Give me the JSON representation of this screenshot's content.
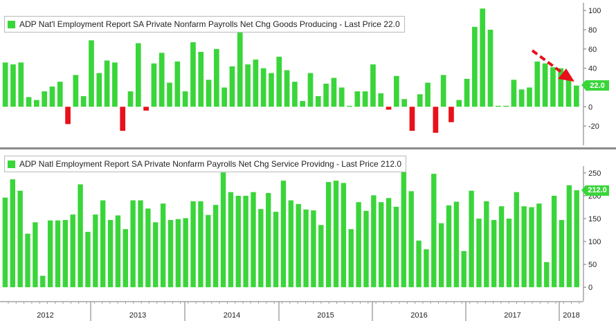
{
  "colors": {
    "positive": "#3ad53a",
    "negative": "#e8111a",
    "arrow": "#e8111a",
    "separator": "#8a8a8a"
  },
  "chart_data": [
    {
      "type": "bar",
      "title": "ADP Nat'l Employment Report SA Private Nonfarm Payrolls Net Chg Goods Producing - Last Price 22.0",
      "last_price_label": "22.0",
      "ylim": [
        -40,
        108
      ],
      "y_ticks": [
        -20,
        0,
        20,
        40,
        60,
        80,
        100
      ],
      "y_tick_labels": [
        "-20",
        "0",
        "20",
        "40",
        "60",
        "80",
        "100"
      ],
      "values": [
        46,
        44,
        46,
        10,
        7,
        16,
        21,
        26,
        -18,
        33,
        11,
        69,
        35,
        48,
        46,
        -25,
        16,
        66,
        -4,
        45,
        56,
        25,
        47,
        16,
        67,
        57,
        28,
        60,
        20,
        42,
        77,
        44,
        49,
        40,
        35,
        52,
        38,
        26,
        6,
        35,
        11,
        24,
        30,
        20,
        1,
        16,
        16,
        44,
        14,
        -3,
        32,
        8,
        -25,
        13,
        25,
        -27,
        33,
        -16,
        7,
        29,
        83,
        102,
        80,
        1,
        1,
        28,
        18,
        20,
        47,
        45,
        41,
        40,
        29,
        22
      ]
    },
    {
      "type": "bar",
      "title": "ADP Natl Employment Report SA Private Nonfarm Payrolls Net Chg Service Providng - Last Price 212.0",
      "last_price_label": "212.0",
      "ylim": [
        -30,
        265
      ],
      "y_ticks": [
        0,
        50,
        100,
        150,
        200,
        250
      ],
      "y_tick_labels": [
        "0",
        "50",
        "100",
        "150",
        "200",
        "250"
      ],
      "values": [
        196,
        236,
        211,
        117,
        142,
        25,
        146,
        146,
        147,
        159,
        225,
        121,
        159,
        190,
        147,
        157,
        127,
        190,
        190,
        172,
        142,
        183,
        147,
        149,
        151,
        188,
        188,
        158,
        180,
        251,
        208,
        200,
        200,
        208,
        171,
        206,
        165,
        233,
        190,
        182,
        170,
        168,
        136,
        230,
        233,
        228,
        127,
        186,
        167,
        201,
        186,
        195,
        176,
        252,
        210,
        102,
        83,
        248,
        140,
        179,
        187,
        79,
        211,
        150,
        188,
        147,
        177,
        150,
        208,
        177,
        175,
        183,
        55,
        200,
        147,
        223,
        212
      ]
    }
  ],
  "x_axis": {
    "years": [
      "2012",
      "2013",
      "2014",
      "2015",
      "2016",
      "2017",
      "2018"
    ]
  }
}
